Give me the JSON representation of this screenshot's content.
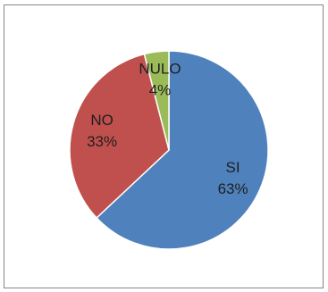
{
  "chart_data": {
    "type": "pie",
    "slices": [
      {
        "name": "SI",
        "value": 63,
        "label": "63%",
        "color": "#4f81bd"
      },
      {
        "name": "NO",
        "value": 33,
        "label": "33%",
        "color": "#c0504d"
      },
      {
        "name": "NULO",
        "value": 4,
        "label": "4%",
        "color": "#9bbb59"
      }
    ],
    "legend": "none",
    "colors": {
      "border": "#868686",
      "slice_stroke": "#ffffff",
      "label_text": "#1f1f1f"
    }
  }
}
